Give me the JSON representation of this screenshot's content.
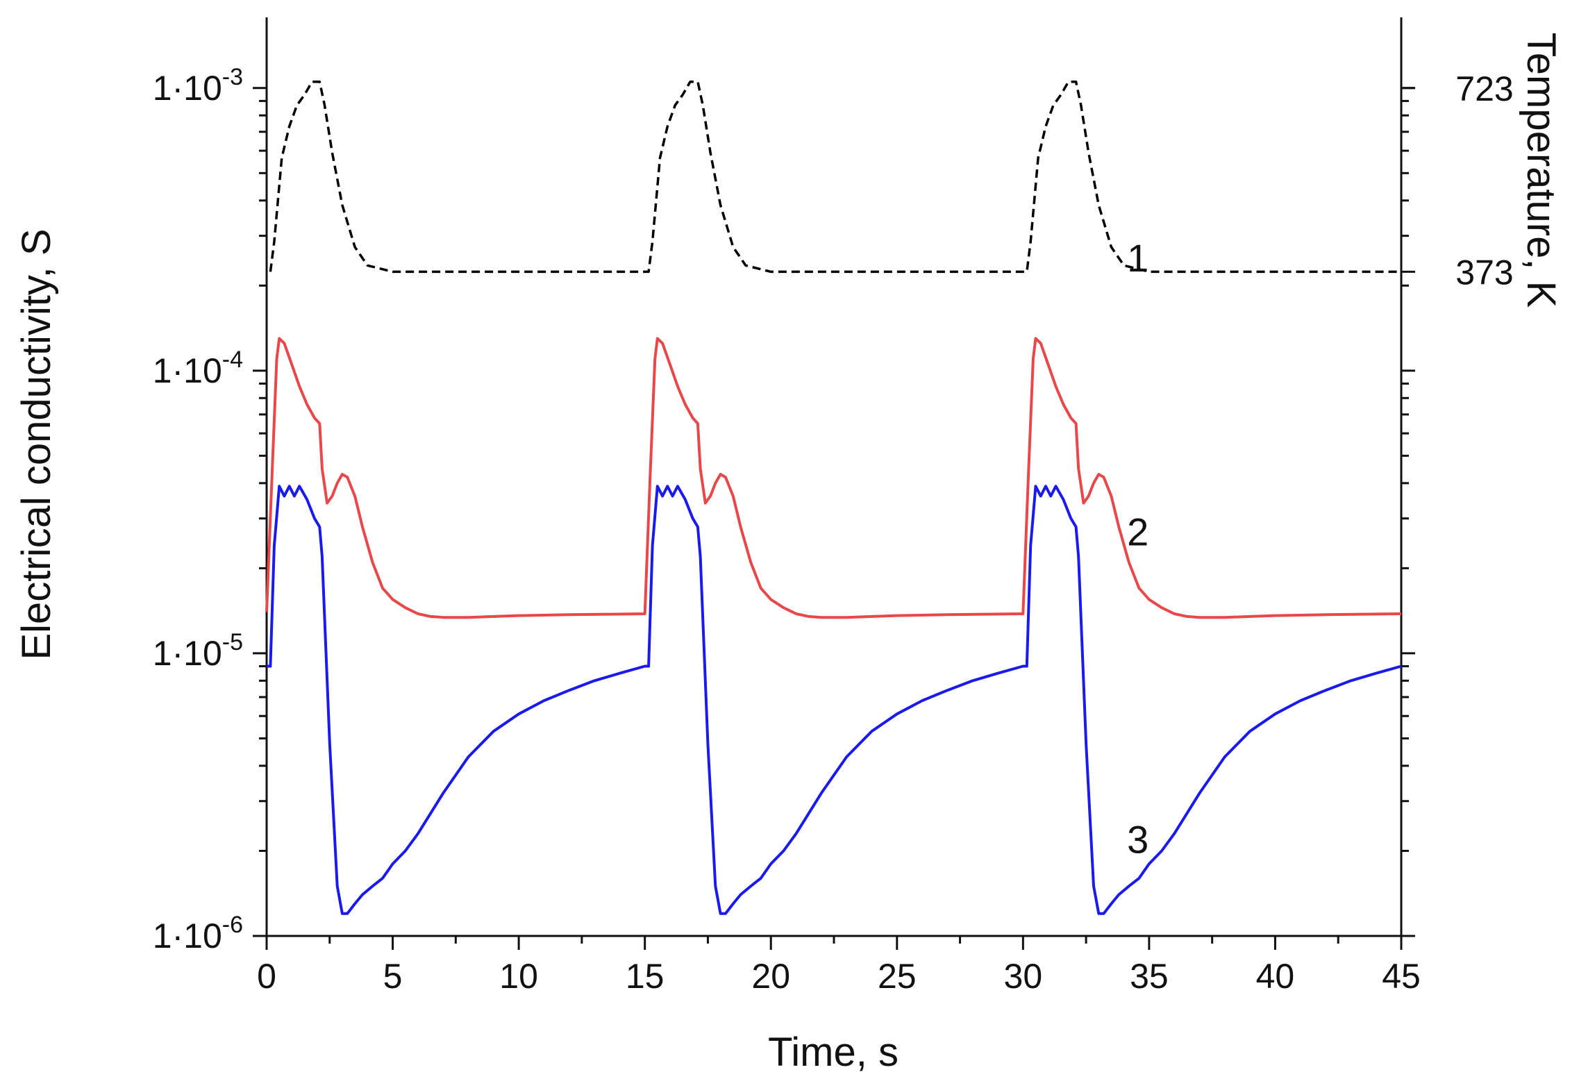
{
  "chart_data": {
    "type": "line",
    "title": "",
    "xlabel": "Time, s",
    "ylabel": "Electrical conductivity, S",
    "y2label": "Temperature, K",
    "xlim": [
      0,
      45
    ],
    "ylim_log10": [
      -6,
      -2.75
    ],
    "x_ticks": [
      0,
      5,
      10,
      15,
      20,
      25,
      30,
      35,
      40,
      45
    ],
    "x_tick_labels": [
      "0",
      "5",
      "10",
      "15",
      "20",
      "25",
      "30",
      "35",
      "40",
      "45"
    ],
    "y_ticks": [
      {
        "mantissa": "1·10",
        "exp": "-3",
        "value": 0.001
      },
      {
        "mantissa": "1·10",
        "exp": "-4",
        "value": 0.0001
      },
      {
        "mantissa": "1·10",
        "exp": "-5",
        "value": 1e-05
      },
      {
        "mantissa": "1·10",
        "exp": "-6",
        "value": 1e-06
      }
    ],
    "y2_ticks": [
      {
        "label": "723",
        "value": 723
      },
      {
        "label": "373",
        "value": 373
      }
    ],
    "y2_map": {
      "t_low": 373,
      "t_high": 723,
      "log_low": -3.65,
      "log_high": -3.0
    },
    "grid": false,
    "legend": "none",
    "series": [
      {
        "name": "1",
        "axis": "right",
        "style": "dashed",
        "color": "#000000",
        "label_at": [
          34.4,
          400
        ],
        "x": [
          0.15,
          0.3,
          0.6,
          0.9,
          1.2,
          1.5,
          1.8,
          2.1,
          2.3,
          2.6,
          3.0,
          3.5,
          4.0,
          5.0,
          15.0,
          15.15,
          15.3,
          15.6,
          15.9,
          16.2,
          16.5,
          16.8,
          17.1,
          17.3,
          17.6,
          18.0,
          18.5,
          19.0,
          20.0,
          30.0,
          30.15,
          30.3,
          30.6,
          30.9,
          31.2,
          31.5,
          31.8,
          32.1,
          32.3,
          32.6,
          33.0,
          33.5,
          34.0,
          35.0,
          45.0
        ],
        "y": [
          373,
          430,
          590,
          650,
          690,
          710,
          735,
          735,
          690,
          600,
          500,
          420,
          385,
          373,
          373,
          373,
          430,
          590,
          650,
          690,
          710,
          735,
          735,
          690,
          600,
          500,
          420,
          385,
          373,
          373,
          373,
          430,
          590,
          650,
          690,
          710,
          735,
          735,
          690,
          600,
          500,
          420,
          385,
          373,
          373
        ]
      },
      {
        "name": "2",
        "axis": "left",
        "style": "solid",
        "color": "#e8484a",
        "label_at": [
          34.4,
          2.7e-05
        ],
        "x": [
          0,
          0.2,
          0.4,
          0.5,
          0.7,
          1.0,
          1.3,
          1.6,
          1.9,
          2.1,
          2.2,
          2.4,
          2.6,
          2.8,
          3.0,
          3.2,
          3.5,
          3.8,
          4.2,
          4.6,
          5.0,
          5.5,
          6.0,
          6.5,
          7.0,
          8.0,
          9.0,
          10.0,
          12.0,
          15.0,
          15.0,
          15.2,
          15.4,
          15.5,
          15.7,
          16.0,
          16.3,
          16.6,
          16.9,
          17.1,
          17.2,
          17.4,
          17.6,
          17.8,
          18.0,
          18.2,
          18.5,
          18.8,
          19.2,
          19.6,
          20.0,
          20.5,
          21.0,
          21.5,
          22.0,
          23.0,
          24.0,
          25.0,
          27.0,
          30.0,
          30.0,
          30.2,
          30.4,
          30.5,
          30.7,
          31.0,
          31.3,
          31.6,
          31.9,
          32.1,
          32.2,
          32.4,
          32.6,
          32.8,
          33.0,
          33.2,
          33.5,
          33.8,
          34.2,
          34.6,
          35.0,
          35.5,
          36.0,
          36.5,
          37.0,
          38.0,
          39.0,
          40.0,
          42.0,
          45.0
        ],
        "y": [
          1.4e-05,
          4e-05,
          0.00011,
          0.00013,
          0.000125,
          0.000105,
          8.8e-05,
          7.6e-05,
          6.8e-05,
          6.5e-05,
          4.5e-05,
          3.4e-05,
          3.6e-05,
          4e-05,
          4.3e-05,
          4.2e-05,
          3.6e-05,
          2.8e-05,
          2.1e-05,
          1.7e-05,
          1.55e-05,
          1.45e-05,
          1.38e-05,
          1.35e-05,
          1.34e-05,
          1.34e-05,
          1.35e-05,
          1.36e-05,
          1.37e-05,
          1.38e-05,
          1.38e-05,
          4e-05,
          0.00011,
          0.00013,
          0.000125,
          0.000105,
          8.8e-05,
          7.6e-05,
          6.8e-05,
          6.5e-05,
          4.5e-05,
          3.4e-05,
          3.6e-05,
          4e-05,
          4.3e-05,
          4.2e-05,
          3.6e-05,
          2.8e-05,
          2.1e-05,
          1.7e-05,
          1.55e-05,
          1.45e-05,
          1.38e-05,
          1.35e-05,
          1.34e-05,
          1.34e-05,
          1.35e-05,
          1.36e-05,
          1.37e-05,
          1.38e-05,
          1.38e-05,
          4e-05,
          0.00011,
          0.00013,
          0.000125,
          0.000105,
          8.8e-05,
          7.6e-05,
          6.8e-05,
          6.5e-05,
          4.5e-05,
          3.4e-05,
          3.6e-05,
          4e-05,
          4.3e-05,
          4.2e-05,
          3.6e-05,
          2.8e-05,
          2.1e-05,
          1.7e-05,
          1.55e-05,
          1.45e-05,
          1.38e-05,
          1.35e-05,
          1.34e-05,
          1.34e-05,
          1.35e-05,
          1.36e-05,
          1.37e-05,
          1.38e-05
        ]
      },
      {
        "name": "3",
        "axis": "left",
        "style": "solid",
        "color": "#1a1aee",
        "label_at": [
          34.4,
          2.2e-06
        ],
        "x": [
          0,
          0.15,
          0.3,
          0.5,
          0.7,
          0.9,
          1.1,
          1.3,
          1.6,
          1.9,
          2.1,
          2.2,
          2.5,
          2.8,
          3.0,
          3.2,
          3.5,
          3.8,
          4.2,
          4.6,
          5.0,
          5.5,
          6.0,
          7.0,
          8.0,
          9.0,
          10.0,
          11.0,
          12.0,
          13.0,
          14.0,
          15.0,
          15.0,
          15.15,
          15.3,
          15.5,
          15.7,
          15.9,
          16.1,
          16.3,
          16.6,
          16.9,
          17.1,
          17.2,
          17.5,
          17.8,
          18.0,
          18.2,
          18.5,
          18.8,
          19.2,
          19.6,
          20.0,
          20.5,
          21.0,
          22.0,
          23.0,
          24.0,
          25.0,
          26.0,
          27.0,
          28.0,
          29.0,
          30.0,
          30.0,
          30.15,
          30.3,
          30.5,
          30.7,
          30.9,
          31.1,
          31.3,
          31.6,
          31.9,
          32.1,
          32.2,
          32.5,
          32.8,
          33.0,
          33.2,
          33.5,
          33.8,
          34.2,
          34.6,
          35.0,
          35.5,
          36.0,
          37.0,
          38.0,
          39.0,
          40.0,
          41.0,
          42.0,
          43.0,
          44.0,
          45.0
        ],
        "y": [
          9e-06,
          9e-06,
          2.4e-05,
          3.9e-05,
          3.6e-05,
          3.9e-05,
          3.6e-05,
          3.9e-05,
          3.5e-05,
          3e-05,
          2.8e-05,
          2.2e-05,
          4.8e-06,
          1.5e-06,
          1.2e-06,
          1.2e-06,
          1.3e-06,
          1.4e-06,
          1.5e-06,
          1.6e-06,
          1.8e-06,
          2e-06,
          2.3e-06,
          3.2e-06,
          4.3e-06,
          5.3e-06,
          6.1e-06,
          6.8e-06,
          7.4e-06,
          8e-06,
          8.5e-06,
          9e-06,
          9e-06,
          9e-06,
          2.4e-05,
          3.9e-05,
          3.6e-05,
          3.9e-05,
          3.6e-05,
          3.9e-05,
          3.5e-05,
          3e-05,
          2.8e-05,
          2.2e-05,
          4.8e-06,
          1.5e-06,
          1.2e-06,
          1.2e-06,
          1.3e-06,
          1.4e-06,
          1.5e-06,
          1.6e-06,
          1.8e-06,
          2e-06,
          2.3e-06,
          3.2e-06,
          4.3e-06,
          5.3e-06,
          6.1e-06,
          6.8e-06,
          7.4e-06,
          8e-06,
          8.5e-06,
          9e-06,
          9e-06,
          9e-06,
          2.4e-05,
          3.9e-05,
          3.6e-05,
          3.9e-05,
          3.6e-05,
          3.9e-05,
          3.5e-05,
          3e-05,
          2.8e-05,
          2.2e-05,
          4.8e-06,
          1.5e-06,
          1.2e-06,
          1.2e-06,
          1.3e-06,
          1.4e-06,
          1.5e-06,
          1.6e-06,
          1.8e-06,
          2e-06,
          2.3e-06,
          3.2e-06,
          4.3e-06,
          5.3e-06,
          6.1e-06,
          6.8e-06,
          7.4e-06,
          8e-06,
          8.5e-06,
          9e-06
        ]
      }
    ]
  }
}
